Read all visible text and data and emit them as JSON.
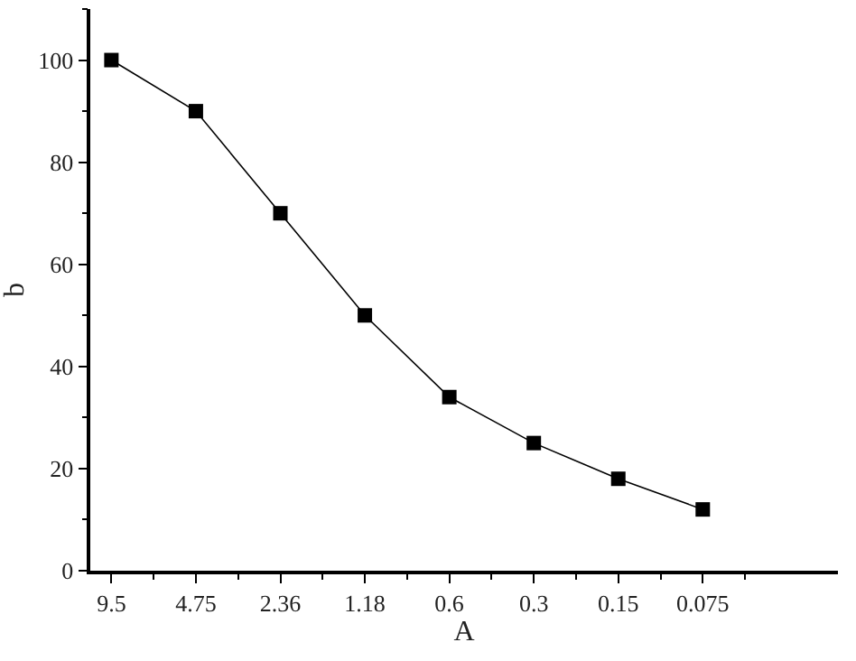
{
  "chart_data": {
    "type": "line",
    "xlabel": "A",
    "ylabel": "b",
    "categories": [
      "9.5",
      "4.75",
      "2.36",
      "1.18",
      "0.6",
      "0.3",
      "0.15",
      "0.075"
    ],
    "series": [
      {
        "color": "#000000",
        "values": [
          100,
          90,
          70,
          50,
          34,
          25,
          18,
          12
        ]
      }
    ],
    "ylim": [
      0,
      110
    ],
    "yticks": [
      0,
      20,
      40,
      60,
      80,
      100
    ],
    "marker": "square",
    "line_style": "solid"
  }
}
